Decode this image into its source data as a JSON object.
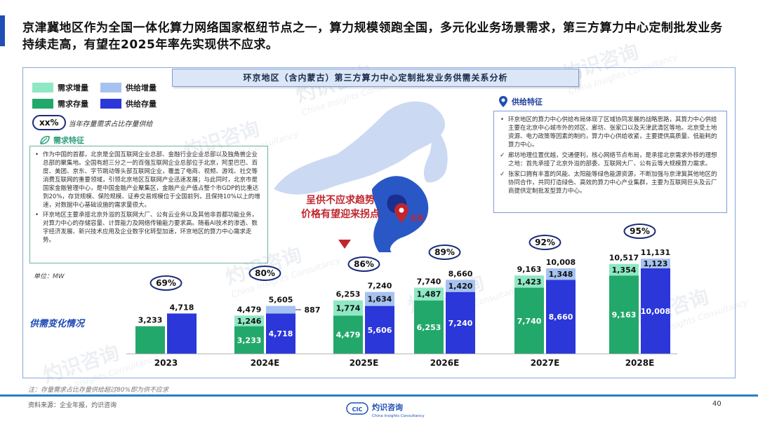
{
  "headline": "京津冀地区作为全国一体化算力网络国家枢纽节点之一，算力规模领跑全国，多元化业务场景需求，第三方算力中心定制批发业务持续走高，有望在2025年率先实现供不应求。",
  "panel_title": "环京地区（含内蒙古）第三方算力中心定制批发业务供需关系分析",
  "legend": {
    "demand_increment": "需求增量",
    "supply_increment": "供给增量",
    "demand_stock": "需求存量",
    "supply_stock": "供给存量"
  },
  "pct_note": {
    "badge": "xx%",
    "text": "当年存量需求占比存量供给"
  },
  "demand_section": {
    "label": "需求特征",
    "bullets": [
      "作为中国的首都，北京是全国互联网企业总部、金融行业企业总部以及独角兽企业总部的聚集地。全国有超三分之一的百强互联网企业总部位于北京，阿里巴巴、百度、美团、京东、字节跳动等头部互联网企业，覆盖了电商、视频、游戏、社交等消费互联网的重要领域，引领北京地区互联网产业迅速发展；与此同时，北京市是国家金融管理中心，是中国金融产业聚集区，金融产业产值占整个市GDP的比重达到20%，存贷规模、保险规模、证券交易规模位于全国前列，且保持10%以上的增速，对数据中心基础设施的需求量很大。",
      "环京地区主要承接北京外溢的互联网大厂、公有云业务以及其他非首都功能业务，对算力中心的存储容量、计算能力及网络传输能力要求高。随着AI技术的渗透、数字经济发展、新兴技术应用及企业数字化转型加速，环京地区的算力中心需求走势。"
    ]
  },
  "supply_section": {
    "label": "供给特征",
    "bullets": [
      "环京地区的算力中心供给布局体现了区域协同发展的战略思路，其算力中心供给主要在北京中心城市外的郊区、廊坊、张家口以及天津武清区等地。北京受土地资源、电力政策等因素的制约，算力中心供给收紧，主要提供高质量、低能耗的算力中心。",
      "廊坊地理位置优越，交通便利，核心网络节点布局，是承接北京需求外移的理想之地：首先承接了北京外溢的部委、互联网大厂、公有云等大规模算力需求。",
      "张家口拥有丰富的风能、太阳能等绿色能源资源，不断加强与京津冀其他地区的协同合作，共同打造绿色、高效的算力中心产业集群，主要为互联网巨头及云厂商提供定制批发型算力中心。"
    ]
  },
  "map": {
    "note_line1": "呈供不应求趋势",
    "note_line2": "价格有望迎来拐点",
    "city_label": "北京"
  },
  "unit": "单位：MW",
  "chart_title": "供需变化情况",
  "colors": {
    "demand_stock": "#23a86b",
    "demand_increment": "#8ee8c3",
    "supply_stock": "#2b37d9",
    "supply_increment": "#a6c2f0",
    "accent": "#1f4fb5",
    "alert": "#c0262d"
  },
  "chart_data": {
    "type": "bar",
    "categories": [
      "2023",
      "2024E",
      "2025E",
      "2026E",
      "2027E",
      "2028E"
    ],
    "demand_totals": [
      3233,
      4479,
      6253,
      7740,
      9163,
      10517
    ],
    "demand_stock": [
      3233,
      3233,
      4479,
      6253,
      7740,
      9163
    ],
    "demand_increment": [
      null,
      1246,
      1774,
      1487,
      1423,
      1354
    ],
    "supply_totals": [
      4718,
      5605,
      7240,
      8660,
      10008,
      11131
    ],
    "supply_stock": [
      4718,
      4718,
      5606,
      7240,
      8660,
      10008
    ],
    "supply_increment": [
      null,
      887,
      1634,
      1420,
      1348,
      1123
    ],
    "ratio_labels": [
      "69%",
      "80%",
      "86%",
      "89%",
      "92%",
      "95%"
    ],
    "series": [
      {
        "name": "需求存量"
      },
      {
        "name": "需求增量"
      },
      {
        "name": "供给存量"
      },
      {
        "name": "供给增量"
      }
    ]
  },
  "footnote": "注：存量需求占比存量供给超过80%即为供不应求",
  "source": "资料来源：企业年报，灼识咨询",
  "page_number": "40",
  "logo": {
    "mark": "CIC",
    "name": "灼识咨询",
    "sub": "China Insights Consultancy"
  },
  "watermark": {
    "main": "灼识咨询",
    "sub": "China Insights Consultancy"
  }
}
